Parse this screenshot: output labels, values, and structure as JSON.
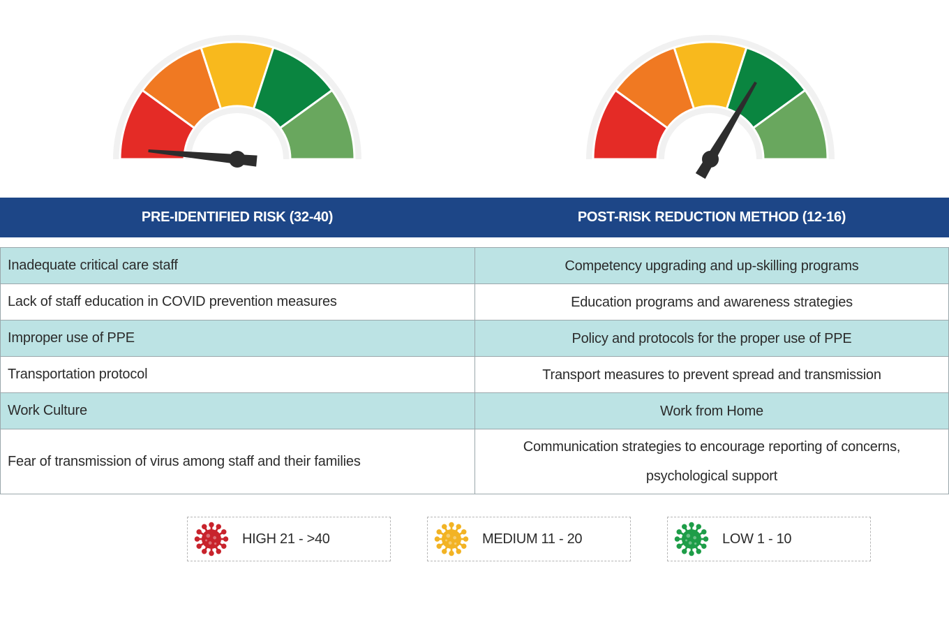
{
  "gauges": [
    {
      "id": "pre",
      "level": 0.03,
      "segments": [
        "#e42b26",
        "#f07922",
        "#f8b91d",
        "#0a8540",
        "#69a75e"
      ]
    },
    {
      "id": "post",
      "level": 0.67,
      "segments": [
        "#e42b26",
        "#f07922",
        "#f8b91d",
        "#0a8540",
        "#69a75e"
      ]
    }
  ],
  "header": {
    "left": "PRE-IDENTIFIED RISK (32-40)",
    "right": "POST-RISK REDUCTION METHOD (12-16)"
  },
  "rows": [
    {
      "risk": "Inadequate critical care staff",
      "method": "Competency upgrading and up-skilling programs"
    },
    {
      "risk": "Lack of staff education in COVID prevention measures",
      "method": "Education programs and awareness strategies"
    },
    {
      "risk": "Improper use of PPE",
      "method": "Policy and protocols for the proper use of PPE"
    },
    {
      "risk": "Transportation protocol",
      "method": "Transport measures to prevent spread and transmission"
    },
    {
      "risk": "Work Culture",
      "method": "Work from Home"
    },
    {
      "risk": "Fear of transmission of virus among staff and their families",
      "method_line1": "Communication strategies to encourage reporting of concerns,",
      "method_line2": "psychological support"
    }
  ],
  "legend": {
    "high": {
      "label": "HIGH 21 - >40",
      "color": "#c8232c",
      "icon": "virus-icon"
    },
    "medium": {
      "label": "MEDIUM 11 -  20",
      "color": "#f2b324",
      "icon": "virus-icon"
    },
    "low": {
      "label": "LOW 1 - 10",
      "color": "#1e9d48",
      "icon": "virus-icon"
    }
  }
}
